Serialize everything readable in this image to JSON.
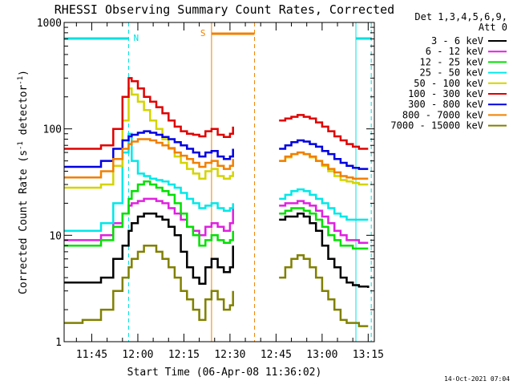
{
  "chart_data": {
    "type": "line",
    "title": "RHESSI Observing Summary Count Rates, Corrected",
    "xlabel": "Start Time (06-Apr-08 11:36:02)",
    "ylabel": "Corrected Count Rate (s⁻¹ detector⁻¹)",
    "ylabel_parts": {
      "pre": "Corrected Count Rate (s",
      "exp1": "-1",
      "mid": " detector",
      "exp2": "-1",
      "post": ")"
    },
    "yscale": "log",
    "ylim": [
      1,
      1000
    ],
    "xlim": [
      "11:36",
      "13:17"
    ],
    "x_ticks": [
      "11:45",
      "12:00",
      "12:15",
      "12:30",
      "12:45",
      "13:00",
      "13:15"
    ],
    "y_ticks": [
      "1",
      "10",
      "100",
      "1000"
    ],
    "legend": {
      "position": "right",
      "header_lines": [
        "Det 1,3,4,5,6,9,",
        "Att 0"
      ]
    },
    "footer_timestamp": "14-Oct-2021 07:04",
    "markers": {
      "night_label": "N",
      "saa_label": "S",
      "night_intervals": [
        [
          "11:36",
          "11:57"
        ],
        [
          "13:11",
          "13:16"
        ]
      ],
      "saa_interval": [
        "12:24",
        "12:38"
      ]
    },
    "time_samples": [
      "11:36",
      "11:42",
      "11:48",
      "11:52",
      "11:55",
      "11:57",
      "11:58",
      "12:00",
      "12:02",
      "12:04",
      "12:06",
      "12:08",
      "12:10",
      "12:12",
      "12:14",
      "12:16",
      "12:18",
      "12:20",
      "12:22",
      "12:24",
      "12:26",
      "12:28",
      "12:30",
      "12:31",
      "12:46",
      "12:48",
      "12:50",
      "12:52",
      "12:54",
      "12:56",
      "12:58",
      "13:00",
      "13:02",
      "13:04",
      "13:06",
      "13:08",
      "13:10",
      "13:12",
      "13:15"
    ],
    "gap": [
      "12:31",
      "12:46"
    ],
    "series": [
      {
        "name": "3 - 6 keV",
        "color": "#000000",
        "values": [
          3.6,
          3.6,
          4,
          6,
          8,
          11,
          13,
          15,
          16,
          16,
          15,
          14,
          12,
          10,
          7,
          5,
          4,
          3.5,
          5,
          6,
          5,
          4.5,
          5,
          8,
          14,
          15,
          15,
          16,
          15,
          13,
          11,
          8,
          6,
          5,
          4,
          3.6,
          3.4,
          3.3,
          3.2
        ]
      },
      {
        "name": "6 - 12 keV",
        "color": "#e020e0",
        "values": [
          9,
          9,
          10,
          13,
          16,
          19,
          20,
          21,
          22,
          22,
          21,
          20,
          18,
          16,
          14,
          12,
          11,
          10,
          12,
          13,
          12,
          11,
          13,
          18,
          19,
          20,
          20,
          21,
          20,
          19,
          17,
          15,
          13,
          11,
          10,
          9,
          9,
          8.5,
          8.5
        ]
      },
      {
        "name": "12 - 25 keV",
        "color": "#00e000",
        "values": [
          8,
          8,
          9,
          12,
          16,
          22,
          26,
          30,
          32,
          30,
          28,
          26,
          24,
          20,
          16,
          12,
          10,
          8,
          9,
          10,
          9,
          8.5,
          9,
          11,
          16,
          17,
          18,
          18,
          17,
          16,
          14,
          12,
          10,
          9,
          8,
          8,
          7.5,
          7.5,
          7.5
        ]
      },
      {
        "name": "25 - 50 keV",
        "color": "#00e8e8",
        "values": [
          11,
          11,
          13,
          20,
          60,
          90,
          50,
          38,
          36,
          34,
          33,
          32,
          30,
          28,
          25,
          22,
          20,
          18,
          19,
          20,
          18,
          17,
          18,
          20,
          22,
          24,
          26,
          27,
          26,
          24,
          22,
          20,
          18,
          16,
          15,
          14,
          14,
          14,
          14
        ]
      },
      {
        "name": "50 - 100 keV",
        "color": "#d4d400",
        "values": [
          28,
          28,
          30,
          45,
          120,
          240,
          210,
          180,
          150,
          120,
          100,
          80,
          65,
          55,
          48,
          42,
          38,
          34,
          40,
          42,
          36,
          34,
          36,
          40,
          50,
          54,
          58,
          60,
          58,
          54,
          50,
          45,
          40,
          36,
          33,
          32,
          31,
          30,
          30
        ]
      },
      {
        "name": "100 - 300 keV",
        "color": "#e00000",
        "values": [
          65,
          65,
          70,
          100,
          200,
          300,
          280,
          240,
          200,
          180,
          160,
          140,
          120,
          105,
          95,
          90,
          88,
          85,
          95,
          100,
          88,
          84,
          90,
          105,
          120,
          125,
          130,
          135,
          130,
          125,
          115,
          105,
          95,
          85,
          78,
          72,
          68,
          65,
          65
        ]
      },
      {
        "name": "300 - 800 keV",
        "color": "#0000e0",
        "values": [
          44,
          44,
          50,
          65,
          78,
          85,
          88,
          92,
          95,
          92,
          88,
          84,
          80,
          75,
          70,
          65,
          60,
          55,
          60,
          62,
          55,
          52,
          55,
          65,
          65,
          70,
          75,
          78,
          76,
          72,
          68,
          62,
          58,
          52,
          48,
          45,
          43,
          42,
          42
        ]
      },
      {
        "name": "800 - 7000 keV",
        "color": "#f08000",
        "values": [
          35,
          35,
          40,
          52,
          65,
          72,
          76,
          80,
          80,
          78,
          74,
          70,
          66,
          60,
          56,
          52,
          48,
          44,
          48,
          50,
          45,
          42,
          45,
          52,
          50,
          55,
          58,
          60,
          58,
          55,
          50,
          46,
          42,
          39,
          36,
          35,
          34,
          34,
          34
        ]
      },
      {
        "name": "7000 - 15000 keV",
        "color": "#808000",
        "values": [
          1.5,
          1.6,
          2,
          3,
          4,
          5,
          6,
          7,
          8,
          8,
          7,
          6,
          5,
          4,
          3,
          2.5,
          2,
          1.6,
          2.5,
          3,
          2.5,
          2,
          2.2,
          3,
          4,
          5,
          6,
          6.5,
          6,
          5,
          4,
          3,
          2.5,
          2,
          1.6,
          1.5,
          1.5,
          1.4,
          1.4
        ]
      }
    ]
  }
}
